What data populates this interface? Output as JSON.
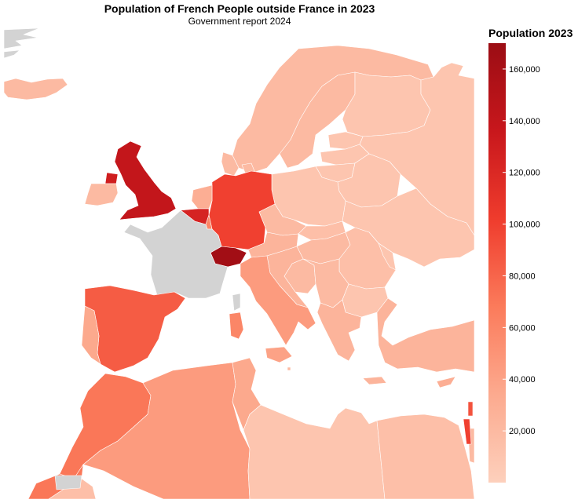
{
  "title": "Population of French People outside France in 2023",
  "subtitle": "Government report 2024",
  "legend": {
    "title": "Population 2023",
    "min": 0,
    "max": 170000,
    "ticks": [
      {
        "value": 20000,
        "label": "20,000"
      },
      {
        "value": 40000,
        "label": "40,000"
      },
      {
        "value": 60000,
        "label": "60,000"
      },
      {
        "value": 80000,
        "label": "80,000"
      },
      {
        "value": 100000,
        "label": "100,000"
      },
      {
        "value": 120000,
        "label": "120,000"
      },
      {
        "value": 140000,
        "label": "140,000"
      },
      {
        "value": 160000,
        "label": "160,000"
      }
    ],
    "colors": [
      "#fdd0bc",
      "#fcaa8f",
      "#fb7b5b",
      "#ef3c2d",
      "#c8171c",
      "#9b0d14"
    ]
  },
  "no_data_color": "#d3d3d3",
  "regions": [
    {
      "name": "United Kingdom",
      "value": 140000
    },
    {
      "name": "Ireland",
      "value": 20000
    },
    {
      "name": "Northern Ireland detail",
      "value": 130000
    },
    {
      "name": "Belgium",
      "value": 125000
    },
    {
      "name": "Netherlands",
      "value": 30000
    },
    {
      "name": "Luxembourg",
      "value": 60000
    },
    {
      "name": "Germany",
      "value": 100000
    },
    {
      "name": "Switzerland",
      "value": 165000
    },
    {
      "name": "Spain",
      "value": 85000
    },
    {
      "name": "Portugal",
      "value": 35000
    },
    {
      "name": "Italy",
      "value": 45000
    },
    {
      "name": "Sicily",
      "value": 40000
    },
    {
      "name": "Sardinia",
      "value": 60000
    },
    {
      "name": "Austria",
      "value": 25000
    },
    {
      "name": "Czechia",
      "value": 20000
    },
    {
      "name": "Poland",
      "value": 10000
    },
    {
      "name": "Norway",
      "value": 20000
    },
    {
      "name": "Sweden",
      "value": 20000
    },
    {
      "name": "Finland",
      "value": 10000
    },
    {
      "name": "Denmark",
      "value": 20000
    },
    {
      "name": "Estonia",
      "value": 10000
    },
    {
      "name": "Latvia",
      "value": 10000
    },
    {
      "name": "Lithuania",
      "value": 10000
    },
    {
      "name": "Belarus",
      "value": 10000
    },
    {
      "name": "Ukraine",
      "value": 10000
    },
    {
      "name": "Russia",
      "value": 10000
    },
    {
      "name": "Hungary",
      "value": 20000
    },
    {
      "name": "Slovakia",
      "value": 15000
    },
    {
      "name": "Romania",
      "value": 15000
    },
    {
      "name": "Moldova",
      "value": 10000
    },
    {
      "name": "Bulgaria",
      "value": 10000
    },
    {
      "name": "Serbia",
      "value": 20000
    },
    {
      "name": "Croatia",
      "value": 25000
    },
    {
      "name": "Bosnia",
      "value": 20000
    },
    {
      "name": "Greece",
      "value": 25000
    },
    {
      "name": "Turkey",
      "value": 25000
    },
    {
      "name": "Cyprus",
      "value": 30000
    },
    {
      "name": "Israel",
      "value": 100000
    },
    {
      "name": "Lebanon",
      "value": 90000
    },
    {
      "name": "Jordan",
      "value": 20000
    },
    {
      "name": "Egypt",
      "value": 15000
    },
    {
      "name": "Libya",
      "value": 10000
    },
    {
      "name": "Tunisia",
      "value": 35000
    },
    {
      "name": "Algeria",
      "value": 45000
    },
    {
      "name": "Morocco",
      "value": 70000
    },
    {
      "name": "Western Sahara",
      "value": 70000
    },
    {
      "name": "Mauritania",
      "value": 15000
    },
    {
      "name": "Iceland",
      "value": 20000
    },
    {
      "name": "Malta",
      "value": 20000
    },
    {
      "name": "Crete",
      "value": 25000
    },
    {
      "name": "France",
      "value": null
    },
    {
      "name": "Corsica",
      "value": null
    },
    {
      "name": "Greenland",
      "value": null
    },
    {
      "name": "Liechtenstein/Czech gap",
      "value": null
    }
  ]
}
